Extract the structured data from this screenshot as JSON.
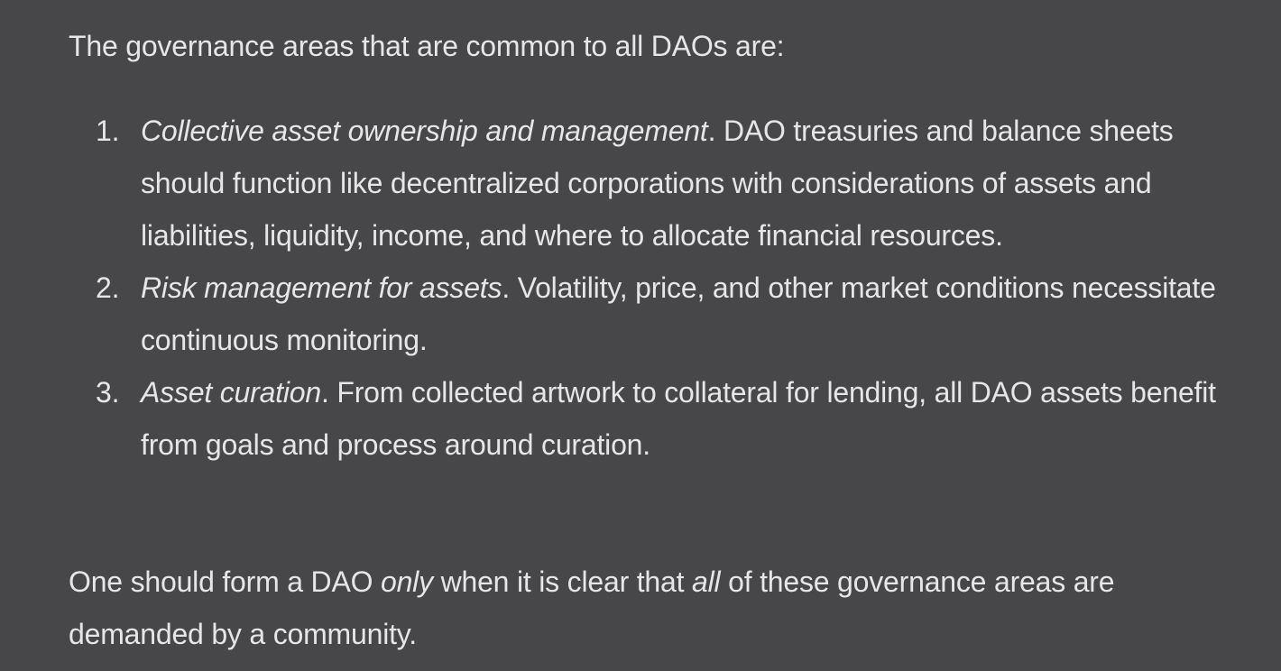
{
  "intro": "The governance areas that are common to all DAOs are:",
  "items": [
    {
      "number": "1.",
      "term": "Collective asset ownership and management",
      "text": ". DAO treasuries and balance sheets should function like decentralized corporations with considerations of assets and liabilities, liquidity, income, and where to allocate financial resources."
    },
    {
      "number": "2.",
      "term": "Risk management for assets",
      "text": ". Volatility, price, and other market conditions necessitate continuous monitoring."
    },
    {
      "number": "3.",
      "term": "Asset curation",
      "text": ". From collected artwork to collateral for lending, all DAO assets benefit from goals and process around curation."
    }
  ],
  "outro": {
    "part1": "One should form a DAO ",
    "em1": "only",
    "part2": " when it is clear that ",
    "em2": "all",
    "part3": " of these governance areas are demanded by a community."
  }
}
